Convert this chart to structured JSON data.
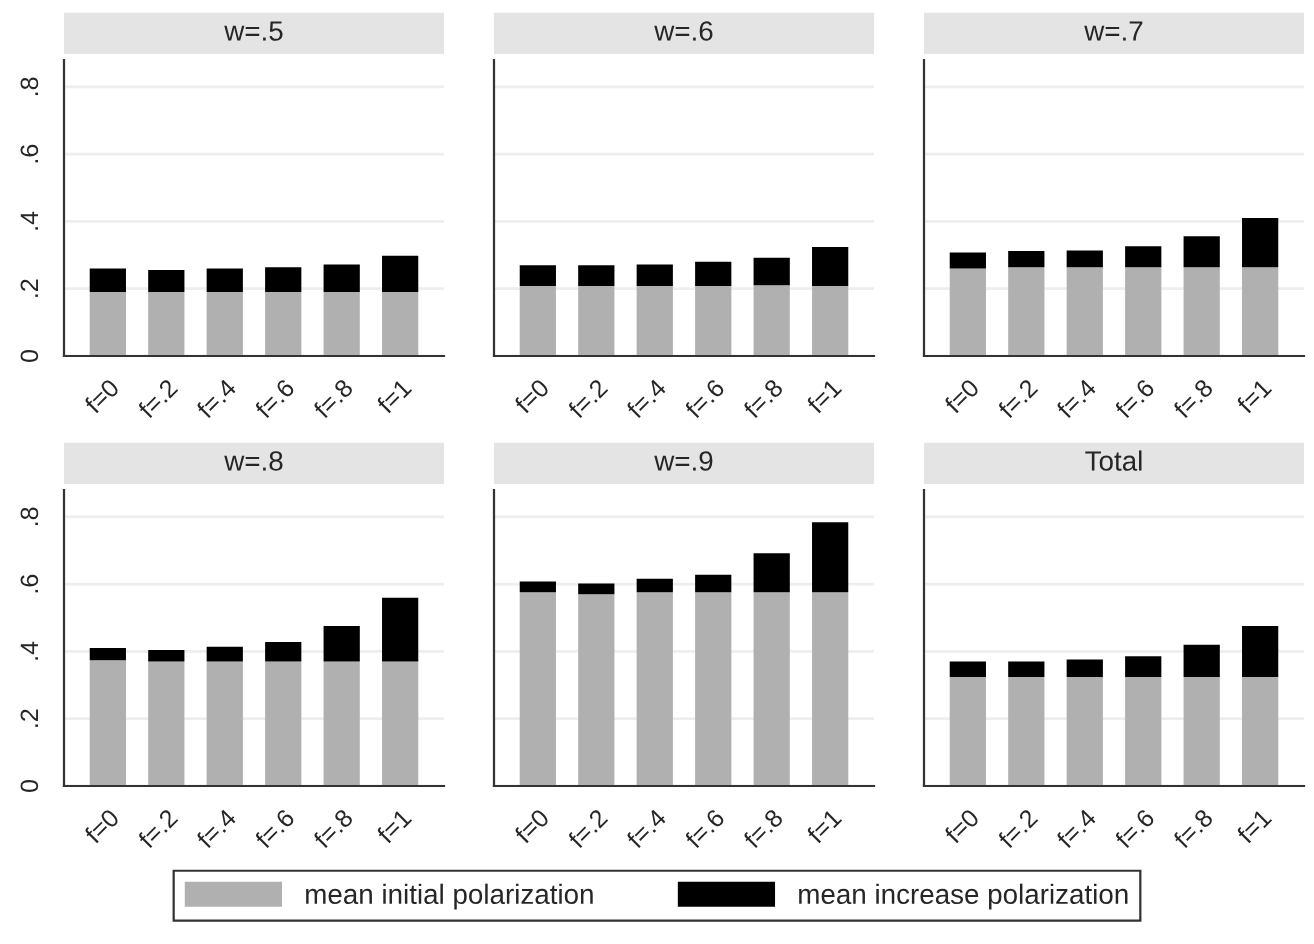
{
  "chart_data": [
    {
      "type": "bar",
      "title": "w=.5",
      "stacked": true,
      "categories": [
        "f=0",
        "f=.2",
        "f=.4",
        "f=.6",
        "f=.8",
        "f=1"
      ],
      "ylim": [
        0,
        0.88
      ],
      "yticks": [
        0,
        {
          "value": 0.2,
          "label": ".2"
        },
        {
          "value": 0.4,
          "label": ".4"
        },
        {
          "value": 0.6,
          "label": ".6"
        },
        {
          "value": 0.8,
          "label": ".8"
        }
      ],
      "grid": "y",
      "legend": "bottom",
      "series": [
        {
          "name": "mean initial polarization",
          "color": "#b0b0b0",
          "values": [
            0.19,
            0.19,
            0.19,
            0.19,
            0.19,
            0.19
          ]
        },
        {
          "name": "mean increase polarization",
          "color": "#000000",
          "values": [
            0.07,
            0.066,
            0.07,
            0.074,
            0.082,
            0.108
          ]
        }
      ]
    },
    {
      "type": "bar",
      "title": "w=.6",
      "stacked": true,
      "categories": [
        "f=0",
        "f=.2",
        "f=.4",
        "f=.6",
        "f=.8",
        "f=1"
      ],
      "ylim": [
        0,
        0.88
      ],
      "yticks": [
        {
          "value": 0,
          "label": null
        },
        {
          "value": 0.2,
          "label": null
        },
        {
          "value": 0.4,
          "label": null
        },
        {
          "value": 0.6,
          "label": null
        },
        {
          "value": 0.8,
          "label": null
        }
      ],
      "grid": "y",
      "tick_labels": "x",
      "series": [
        {
          "color": "#b0b0b0",
          "values": [
            0.208,
            0.208,
            0.208,
            0.208,
            0.21,
            0.208
          ]
        },
        {
          "color": "#000000",
          "values": [
            0.062,
            0.062,
            0.064,
            0.072,
            0.082,
            0.116
          ]
        }
      ]
    },
    {
      "type": "bar",
      "title": "w=.7",
      "stacked": true,
      "categories": [
        "f=0",
        "f=.2",
        "f=.4",
        "f=.6",
        "f=.8",
        "f=1"
      ],
      "ylim": [
        0,
        0.88
      ],
      "yticks": [
        {
          "value": 0,
          "label": null
        },
        {
          "value": 0.2,
          "label": null
        },
        {
          "value": 0.4,
          "label": null
        },
        {
          "value": 0.6,
          "label": null
        },
        {
          "value": 0.8,
          "label": null
        }
      ],
      "grid": "y",
      "tick_labels": "x",
      "series": [
        {
          "color": "#b0b0b0",
          "values": [
            0.26,
            0.264,
            0.264,
            0.264,
            0.264,
            0.264
          ]
        },
        {
          "color": "#000000",
          "values": [
            0.048,
            0.048,
            0.05,
            0.062,
            0.092,
            0.146
          ]
        }
      ]
    },
    {
      "type": "bar",
      "title": "w=.8",
      "stacked": true,
      "categories": [
        "f=0",
        "f=.2",
        "f=.4",
        "f=.6",
        "f=.8",
        "f=1"
      ],
      "ylim": [
        0,
        0.88
      ],
      "yticks": [
        0,
        {
          "value": 0.2,
          "label": ".2"
        },
        {
          "value": 0.4,
          "label": ".4"
        },
        {
          "value": 0.6,
          "label": ".6"
        },
        {
          "value": 0.8,
          "label": ".8"
        }
      ],
      "grid": "y",
      "series": [
        {
          "color": "#b0b0b0",
          "values": [
            0.374,
            0.37,
            0.37,
            0.37,
            0.37,
            0.37
          ]
        },
        {
          "color": "#000000",
          "values": [
            0.036,
            0.034,
            0.044,
            0.058,
            0.106,
            0.19
          ]
        }
      ]
    },
    {
      "type": "bar",
      "title": "w=.9",
      "stacked": true,
      "categories": [
        "f=0",
        "f=.2",
        "f=.4",
        "f=.6",
        "f=.8",
        "f=1"
      ],
      "ylim": [
        0,
        0.88
      ],
      "yticks": [
        {
          "value": 0,
          "label": null
        },
        {
          "value": 0.2,
          "label": null
        },
        {
          "value": 0.4,
          "label": null
        },
        {
          "value": 0.6,
          "label": null
        },
        {
          "value": 0.8,
          "label": null
        }
      ],
      "grid": "y",
      "tick_labels": "x",
      "series": [
        {
          "color": "#b0b0b0",
          "values": [
            0.576,
            0.57,
            0.576,
            0.576,
            0.576,
            0.576
          ]
        },
        {
          "color": "#000000",
          "values": [
            0.032,
            0.032,
            0.04,
            0.052,
            0.116,
            0.208
          ]
        }
      ]
    },
    {
      "type": "bar",
      "title": "Total",
      "stacked": true,
      "categories": [
        "f=0",
        "f=.2",
        "f=.4",
        "f=.6",
        "f=.8",
        "f=1"
      ],
      "ylim": [
        0,
        0.88
      ],
      "yticks": [
        {
          "value": 0,
          "label": null
        },
        {
          "value": 0.2,
          "label": null
        },
        {
          "value": 0.4,
          "label": null
        },
        {
          "value": 0.6,
          "label": null
        },
        {
          "value": 0.8,
          "label": null
        }
      ],
      "grid": "y",
      "tick_labels": "x",
      "series": [
        {
          "color": "#b0b0b0",
          "values": [
            0.324,
            0.324,
            0.324,
            0.324,
            0.324,
            0.324
          ]
        },
        {
          "color": "#000000",
          "values": [
            0.046,
            0.046,
            0.052,
            0.062,
            0.096,
            0.152
          ]
        }
      ]
    }
  ]
}
